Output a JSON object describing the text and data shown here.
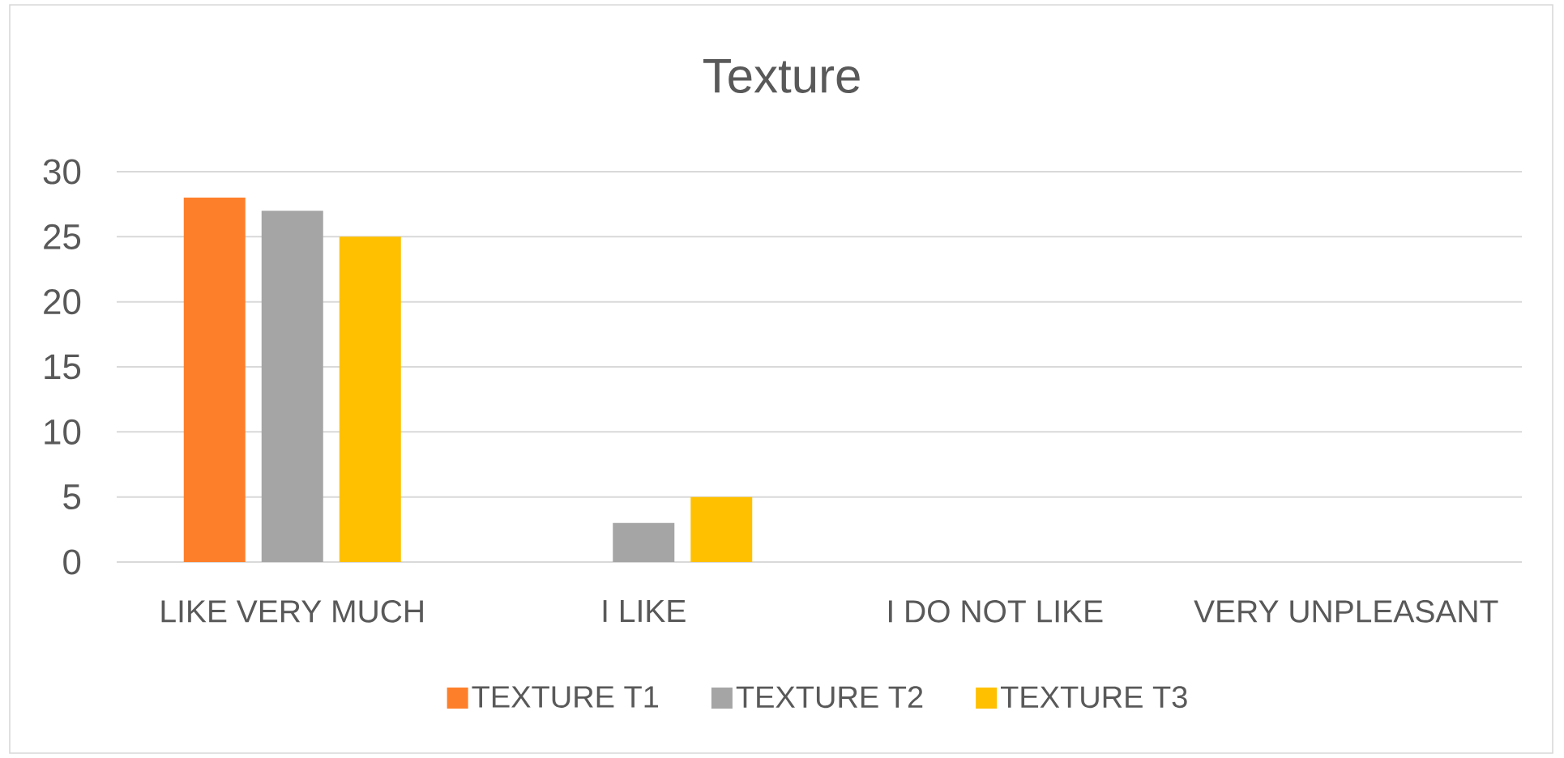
{
  "chart_data": {
    "type": "bar",
    "title": "Texture",
    "categories": [
      "LIKE VERY MUCH",
      "I LIKE",
      "I DO NOT LIKE",
      "VERY UNPLEASANT"
    ],
    "series": [
      {
        "name": "TEXTURE T1",
        "color": "#fe7f2a",
        "values": [
          28,
          0,
          0,
          0
        ]
      },
      {
        "name": "TEXTURE T2",
        "color": "#a5a5a5",
        "values": [
          27,
          3,
          0,
          0
        ]
      },
      {
        "name": "TEXTURE T3",
        "color": "#ffc000",
        "values": [
          25,
          5,
          0,
          0
        ]
      }
    ],
    "ylim": [
      0,
      30
    ],
    "yticks": [
      0,
      5,
      10,
      15,
      20,
      25,
      30
    ],
    "grid": "y",
    "legend": "bottom"
  }
}
